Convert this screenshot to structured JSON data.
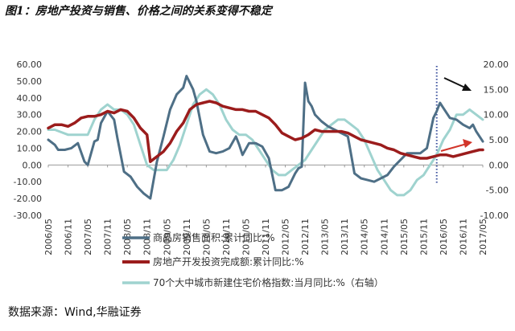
{
  "title": "图1：房地产投资与销售、价格之间的关系变得不稳定",
  "source": "数据来源：Wind,华融证券",
  "colors": {
    "sales": "#4e6f86",
    "investment": "#9b1c1c",
    "price": "#9fd3cf",
    "arrow_black": "#111111",
    "arrow_red": "#d2352a",
    "marker": "#3a4f9c"
  },
  "chart_data": {
    "type": "line",
    "y_left_ticks": [
      "60.00",
      "50.00",
      "40.00",
      "30.00",
      "20.00",
      "10.00",
      "0.00",
      "-10.00",
      "-20.00",
      "-30.00"
    ],
    "y_right_ticks": [
      "20.00",
      "15.00",
      "10.00",
      "5.00",
      "0.00",
      "-5.00",
      "-10.00"
    ],
    "ylim_left": [
      -30,
      60
    ],
    "ylim_right": [
      -10,
      20
    ],
    "x_labels": [
      "2006/05",
      "2006/11",
      "2007/05",
      "2007/11",
      "2008/05",
      "2008/11",
      "2009/05",
      "2009/11",
      "2010/05",
      "2010/11",
      "2011/05",
      "2011/11",
      "2012/05",
      "2012/11",
      "2013/05",
      "2013/11",
      "2014/05",
      "2014/11",
      "2015/05",
      "2015/11",
      "2016/05",
      "2016/11",
      "2017/05"
    ],
    "x_range": [
      "2006-05",
      "2017-05"
    ],
    "vertical_marker": "2016-03",
    "grid": false,
    "legend_position": "bottom",
    "series": [
      {
        "name": "商品房销售面积:累计同比:%",
        "axis": "left",
        "points": [
          [
            "2006-05",
            15
          ],
          [
            "2006-07",
            12
          ],
          [
            "2006-08",
            9
          ],
          [
            "2006-10",
            9
          ],
          [
            "2006-12",
            10
          ],
          [
            "2007-02",
            13
          ],
          [
            "2007-04",
            2
          ],
          [
            "2007-05",
            0
          ],
          [
            "2007-07",
            14
          ],
          [
            "2007-08",
            15
          ],
          [
            "2007-09",
            25
          ],
          [
            "2007-11",
            32
          ],
          [
            "2008-01",
            27
          ],
          [
            "2008-02",
            16
          ],
          [
            "2008-04",
            -4
          ],
          [
            "2008-06",
            -7
          ],
          [
            "2008-08",
            -13
          ],
          [
            "2008-10",
            -17
          ],
          [
            "2008-12",
            -20
          ],
          [
            "2009-02",
            2
          ],
          [
            "2009-04",
            17
          ],
          [
            "2009-06",
            33
          ],
          [
            "2009-08",
            42
          ],
          [
            "2009-10",
            46
          ],
          [
            "2009-11",
            53
          ],
          [
            "2010-01",
            45
          ],
          [
            "2010-02",
            38
          ],
          [
            "2010-04",
            18
          ],
          [
            "2010-06",
            8
          ],
          [
            "2010-08",
            7
          ],
          [
            "2010-10",
            8
          ],
          [
            "2010-12",
            10
          ],
          [
            "2011-02",
            17
          ],
          [
            "2011-03",
            12
          ],
          [
            "2011-04",
            6
          ],
          [
            "2011-06",
            13
          ],
          [
            "2011-08",
            13
          ],
          [
            "2011-10",
            11
          ],
          [
            "2011-12",
            4
          ],
          [
            "2012-02",
            -15
          ],
          [
            "2012-04",
            -15
          ],
          [
            "2012-06",
            -13
          ],
          [
            "2012-08",
            -5
          ],
          [
            "2012-09",
            -2
          ],
          [
            "2012-10",
            -1
          ],
          [
            "2012-11",
            49
          ],
          [
            "2012-12",
            38
          ],
          [
            "2013-01",
            35
          ],
          [
            "2013-02",
            30
          ],
          [
            "2013-04",
            26
          ],
          [
            "2013-06",
            23
          ],
          [
            "2013-08",
            21
          ],
          [
            "2013-10",
            19
          ],
          [
            "2013-12",
            17
          ],
          [
            "2014-02",
            -5
          ],
          [
            "2014-04",
            -8
          ],
          [
            "2014-06",
            -9
          ],
          [
            "2014-08",
            -10
          ],
          [
            "2014-10",
            -8
          ],
          [
            "2014-12",
            -6
          ],
          [
            "2015-02",
            -1
          ],
          [
            "2015-04",
            3
          ],
          [
            "2015-06",
            7
          ],
          [
            "2015-08",
            7
          ],
          [
            "2015-10",
            7
          ],
          [
            "2015-12",
            10
          ],
          [
            "2016-02",
            28
          ],
          [
            "2016-03",
            32
          ],
          [
            "2016-04",
            37
          ],
          [
            "2016-05",
            34
          ],
          [
            "2016-07",
            28
          ],
          [
            "2016-09",
            27
          ],
          [
            "2016-11",
            24
          ],
          [
            "2017-01",
            22
          ],
          [
            "2017-02",
            24
          ],
          [
            "2017-03",
            20
          ],
          [
            "2017-05",
            14
          ]
        ]
      },
      {
        "name": "房地产开发投资完成额:累计同比:%",
        "axis": "left",
        "points": [
          [
            "2006-05",
            22
          ],
          [
            "2006-07",
            24
          ],
          [
            "2006-09",
            24
          ],
          [
            "2006-11",
            23
          ],
          [
            "2007-01",
            25
          ],
          [
            "2007-03",
            28
          ],
          [
            "2007-05",
            29
          ],
          [
            "2007-07",
            29
          ],
          [
            "2007-09",
            30
          ],
          [
            "2007-11",
            32
          ],
          [
            "2008-01",
            31
          ],
          [
            "2008-03",
            33
          ],
          [
            "2008-05",
            32
          ],
          [
            "2008-07",
            28
          ],
          [
            "2008-09",
            22
          ],
          [
            "2008-11",
            18
          ],
          [
            "2008-12",
            2
          ],
          [
            "2009-02",
            5
          ],
          [
            "2009-04",
            8
          ],
          [
            "2009-06",
            13
          ],
          [
            "2009-08",
            20
          ],
          [
            "2009-10",
            25
          ],
          [
            "2009-12",
            33
          ],
          [
            "2010-02",
            36
          ],
          [
            "2010-04",
            37
          ],
          [
            "2010-06",
            38
          ],
          [
            "2010-08",
            37
          ],
          [
            "2010-10",
            35
          ],
          [
            "2010-12",
            34
          ],
          [
            "2011-02",
            33
          ],
          [
            "2011-04",
            33
          ],
          [
            "2011-06",
            32
          ],
          [
            "2011-08",
            32
          ],
          [
            "2011-10",
            30
          ],
          [
            "2011-12",
            28
          ],
          [
            "2012-02",
            24
          ],
          [
            "2012-04",
            19
          ],
          [
            "2012-06",
            17
          ],
          [
            "2012-08",
            15
          ],
          [
            "2012-10",
            16
          ],
          [
            "2012-12",
            18
          ],
          [
            "2013-02",
            21
          ],
          [
            "2013-04",
            20
          ],
          [
            "2013-06",
            20
          ],
          [
            "2013-08",
            20
          ],
          [
            "2013-10",
            20
          ],
          [
            "2013-12",
            19
          ],
          [
            "2014-02",
            17
          ],
          [
            "2014-04",
            15
          ],
          [
            "2014-06",
            14
          ],
          [
            "2014-08",
            13
          ],
          [
            "2014-10",
            12
          ],
          [
            "2014-12",
            10
          ],
          [
            "2015-02",
            9
          ],
          [
            "2015-04",
            7
          ],
          [
            "2015-06",
            6
          ],
          [
            "2015-08",
            5
          ],
          [
            "2015-10",
            4
          ],
          [
            "2015-12",
            4
          ],
          [
            "2016-02",
            5
          ],
          [
            "2016-04",
            6
          ],
          [
            "2016-06",
            6
          ],
          [
            "2016-08",
            5
          ],
          [
            "2016-10",
            6
          ],
          [
            "2016-12",
            7
          ],
          [
            "2017-02",
            8
          ],
          [
            "2017-04",
            9
          ],
          [
            "2017-05",
            9
          ]
        ]
      },
      {
        "name": "70个大中城市新建住宅价格指数:当月同比:%（右轴）",
        "axis": "right",
        "points": [
          [
            "2006-05",
            7
          ],
          [
            "2006-07",
            7
          ],
          [
            "2006-09",
            6.5
          ],
          [
            "2006-11",
            6
          ],
          [
            "2007-01",
            6
          ],
          [
            "2007-03",
            6
          ],
          [
            "2007-05",
            6
          ],
          [
            "2007-07",
            9
          ],
          [
            "2007-09",
            11
          ],
          [
            "2007-11",
            12
          ],
          [
            "2008-01",
            11
          ],
          [
            "2008-03",
            11
          ],
          [
            "2008-05",
            10
          ],
          [
            "2008-07",
            8
          ],
          [
            "2008-09",
            4
          ],
          [
            "2008-11",
            0
          ],
          [
            "2009-01",
            -1
          ],
          [
            "2009-03",
            -1
          ],
          [
            "2009-05",
            -1
          ],
          [
            "2009-07",
            1
          ],
          [
            "2009-09",
            4
          ],
          [
            "2009-11",
            8
          ],
          [
            "2010-01",
            12
          ],
          [
            "2010-03",
            14
          ],
          [
            "2010-05",
            15
          ],
          [
            "2010-07",
            14
          ],
          [
            "2010-09",
            12
          ],
          [
            "2010-11",
            9
          ],
          [
            "2011-01",
            7
          ],
          [
            "2011-03",
            6
          ],
          [
            "2011-05",
            6
          ],
          [
            "2011-07",
            5
          ],
          [
            "2011-09",
            3
          ],
          [
            "2011-11",
            1
          ],
          [
            "2012-01",
            -1
          ],
          [
            "2012-03",
            -2
          ],
          [
            "2012-05",
            -2
          ],
          [
            "2012-07",
            -1
          ],
          [
            "2012-09",
            0
          ],
          [
            "2012-11",
            1
          ],
          [
            "2013-01",
            3
          ],
          [
            "2013-03",
            5
          ],
          [
            "2013-05",
            7
          ],
          [
            "2013-07",
            8
          ],
          [
            "2013-09",
            9
          ],
          [
            "2013-11",
            9
          ],
          [
            "2014-01",
            8
          ],
          [
            "2014-03",
            7
          ],
          [
            "2014-05",
            5
          ],
          [
            "2014-07",
            2
          ],
          [
            "2014-09",
            -1
          ],
          [
            "2014-11",
            -3
          ],
          [
            "2015-01",
            -5
          ],
          [
            "2015-03",
            -6
          ],
          [
            "2015-05",
            -6
          ],
          [
            "2015-07",
            -5
          ],
          [
            "2015-09",
            -3
          ],
          [
            "2015-11",
            -2
          ],
          [
            "2016-01",
            0
          ],
          [
            "2016-03",
            2
          ],
          [
            "2016-05",
            5
          ],
          [
            "2016-07",
            7
          ],
          [
            "2016-09",
            10
          ],
          [
            "2016-11",
            10
          ],
          [
            "2017-01",
            11
          ],
          [
            "2017-03",
            10
          ],
          [
            "2017-05",
            9
          ]
        ]
      }
    ]
  }
}
